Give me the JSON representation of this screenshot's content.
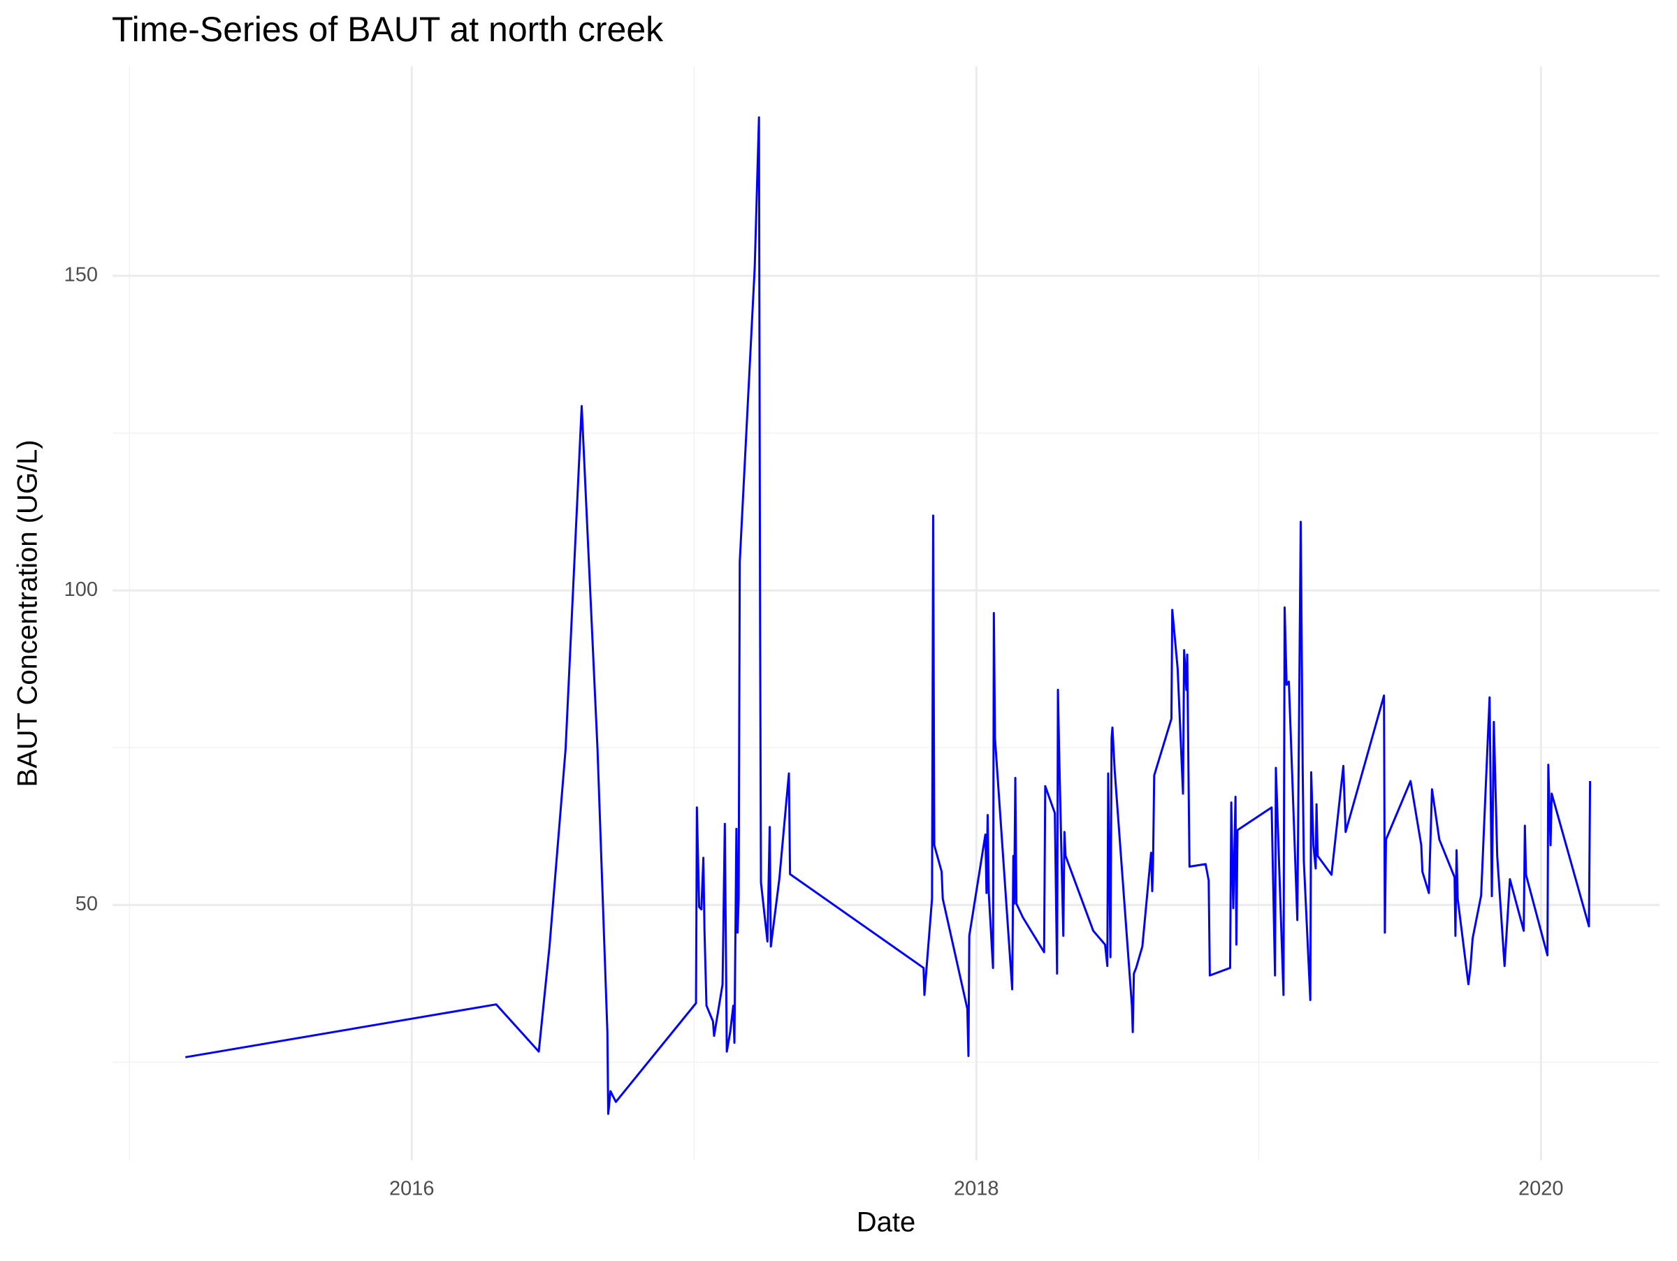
{
  "chart_data": {
    "type": "line",
    "title": "Time-Series of BAUT at north creek",
    "x_label": "Date",
    "y_label": "BAUT Concentration (UG/L)",
    "color": "#0000ff",
    "grid": true,
    "xlim": [
      2014.94,
      2020.42
    ],
    "ylim": [
      9.4,
      183.3
    ],
    "xticks": [
      2016,
      2018,
      2020
    ],
    "yticks": [
      50,
      100,
      150
    ],
    "xminor_ticks": [
      2015,
      2017,
      2019
    ],
    "yminor_ticks": [
      25,
      75,
      125
    ],
    "x": [
      2015.198,
      2016.299,
      2016.45,
      2016.488,
      2016.545,
      2016.602,
      2016.658,
      2016.693,
      2016.696,
      2016.704,
      2016.723,
      2017.007,
      2017.01,
      2017.018,
      2017.026,
      2017.033,
      2017.037,
      2017.044,
      2017.067,
      2017.071,
      2017.101,
      2017.109,
      2017.116,
      2017.128,
      2017.139,
      2017.143,
      2017.15,
      2017.154,
      2017.158,
      2017.162,
      2017.215,
      2017.23,
      2017.234,
      2017.237,
      2017.26,
      2017.268,
      2017.272,
      2017.302,
      2017.336,
      2017.34,
      2017.813,
      2017.816,
      2017.843,
      2017.847,
      2017.851,
      2017.877,
      2017.881,
      2017.968,
      2017.972,
      2017.975,
      2018.032,
      2018.036,
      2018.04,
      2018.044,
      2018.059,
      2018.062,
      2018.066,
      2018.127,
      2018.131,
      2018.134,
      2018.138,
      2018.142,
      2018.165,
      2018.24,
      2018.244,
      2018.278,
      2018.286,
      2018.289,
      2018.293,
      2018.308,
      2018.312,
      2018.316,
      2018.414,
      2018.456,
      2018.464,
      2018.467,
      2018.475,
      2018.479,
      2018.482,
      2018.49,
      2018.551,
      2018.554,
      2018.558,
      2018.566,
      2018.588,
      2018.619,
      2018.623,
      2018.626,
      2018.63,
      2018.691,
      2018.694,
      2018.713,
      2018.732,
      2018.736,
      2018.744,
      2018.747,
      2018.755,
      2018.812,
      2018.823,
      2018.827,
      2018.899,
      2018.903,
      2018.91,
      2018.918,
      2018.921,
      2018.925,
      2019.046,
      2019.058,
      2019.061,
      2019.088,
      2019.092,
      2019.099,
      2019.107,
      2019.137,
      2019.149,
      2019.156,
      2019.16,
      2019.183,
      2019.186,
      2019.194,
      2019.202,
      2019.205,
      2019.209,
      2019.258,
      2019.3,
      2019.308,
      2019.444,
      2019.447,
      2019.451,
      2019.538,
      2019.576,
      2019.58,
      2019.603,
      2019.614,
      2019.64,
      2019.694,
      2019.697,
      2019.701,
      2019.705,
      2019.743,
      2019.75,
      2019.758,
      2019.788,
      2019.818,
      2019.826,
      2019.833,
      2019.845,
      2019.871,
      2019.89,
      2019.939,
      2019.943,
      2019.947,
      2020.023,
      2020.026,
      2020.034,
      2020.038,
      2020.17,
      2020.174
    ],
    "values": [
      25.8,
      34.2,
      26.7,
      43.4,
      74.8,
      129.3,
      74.8,
      29.8,
      16.8,
      20.4,
      18.7,
      34.4,
      65.5,
      49.7,
      49.3,
      57.5,
      45.9,
      34.0,
      31.5,
      29.2,
      37.4,
      62.9,
      26.7,
      29.8,
      34.0,
      28.1,
      62.1,
      45.6,
      51.0,
      104.6,
      151.4,
      175.2,
      93.5,
      53.6,
      44.2,
      62.4,
      43.4,
      54.1,
      70.9,
      54.9,
      40.0,
      35.7,
      51.0,
      111.9,
      59.5,
      55.3,
      51.0,
      33.5,
      26.0,
      45.1,
      61.2,
      51.9,
      64.3,
      51.9,
      40.0,
      96.4,
      76.5,
      36.6,
      57.8,
      50.2,
      70.2,
      50.2,
      48.0,
      42.5,
      68.9,
      64.6,
      39.1,
      84.2,
      74.8,
      45.1,
      61.6,
      57.8,
      45.9,
      43.7,
      40.3,
      70.9,
      41.7,
      76.5,
      78.2,
      71.4,
      34.0,
      29.8,
      39.1,
      40.0,
      43.4,
      58.3,
      52.2,
      57.0,
      70.6,
      79.6,
      96.9,
      87.6,
      67.7,
      90.5,
      84.2,
      89.8,
      56.1,
      56.5,
      53.9,
      38.8,
      40.0,
      66.3,
      49.5,
      67.2,
      43.7,
      61.9,
      65.5,
      38.8,
      71.8,
      35.7,
      97.3,
      85.0,
      85.5,
      47.6,
      110.9,
      71.4,
      57.0,
      34.9,
      71.1,
      59.5,
      55.8,
      66.0,
      57.8,
      54.8,
      72.1,
      61.6,
      83.3,
      45.6,
      60.4,
      69.7,
      59.5,
      55.3,
      51.9,
      68.4,
      60.4,
      54.4,
      45.1,
      58.7,
      51.0,
      37.4,
      40.0,
      44.7,
      51.5,
      83.0,
      51.4,
      79.1,
      57.8,
      40.3,
      54.1,
      45.9,
      62.6,
      54.8,
      42.0,
      72.3,
      59.5,
      67.7,
      46.6,
      69.7
    ]
  }
}
